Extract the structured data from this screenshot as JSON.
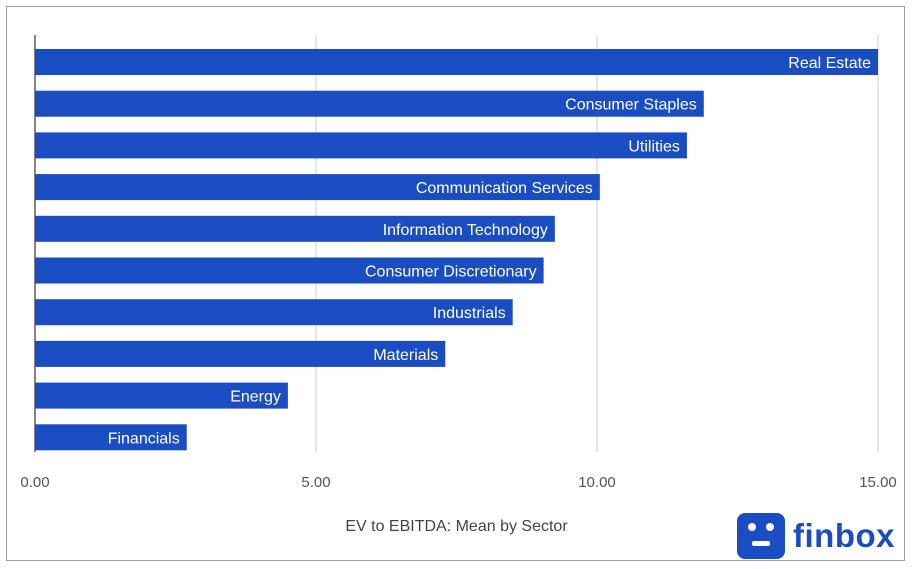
{
  "colors": {
    "bar": "#1a4dc2",
    "grid": "#cccccc",
    "axis": "#333333",
    "brand": "#1a4dc2"
  },
  "brand": {
    "name": "finbox",
    "icon": "finbox-logo-icon"
  },
  "chart_data": {
    "type": "bar",
    "orientation": "horizontal",
    "title": "",
    "xlabel": "EV to EBITDA: Mean by Sector",
    "ylabel": "",
    "xlim": [
      0,
      15
    ],
    "xticks": [
      "0.00",
      "5.00",
      "10.00",
      "15.00"
    ],
    "xtick_values": [
      0,
      5,
      10,
      15
    ],
    "grid": true,
    "legend": "none",
    "categories": [
      "Real Estate",
      "Consumer Staples",
      "Utilities",
      "Communication Services",
      "Information Technology",
      "Consumer Discretionary",
      "Industrials",
      "Materials",
      "Energy",
      "Financials"
    ],
    "values": [
      15.0,
      11.9,
      11.6,
      10.05,
      9.25,
      9.05,
      8.5,
      7.3,
      4.5,
      2.7
    ]
  }
}
